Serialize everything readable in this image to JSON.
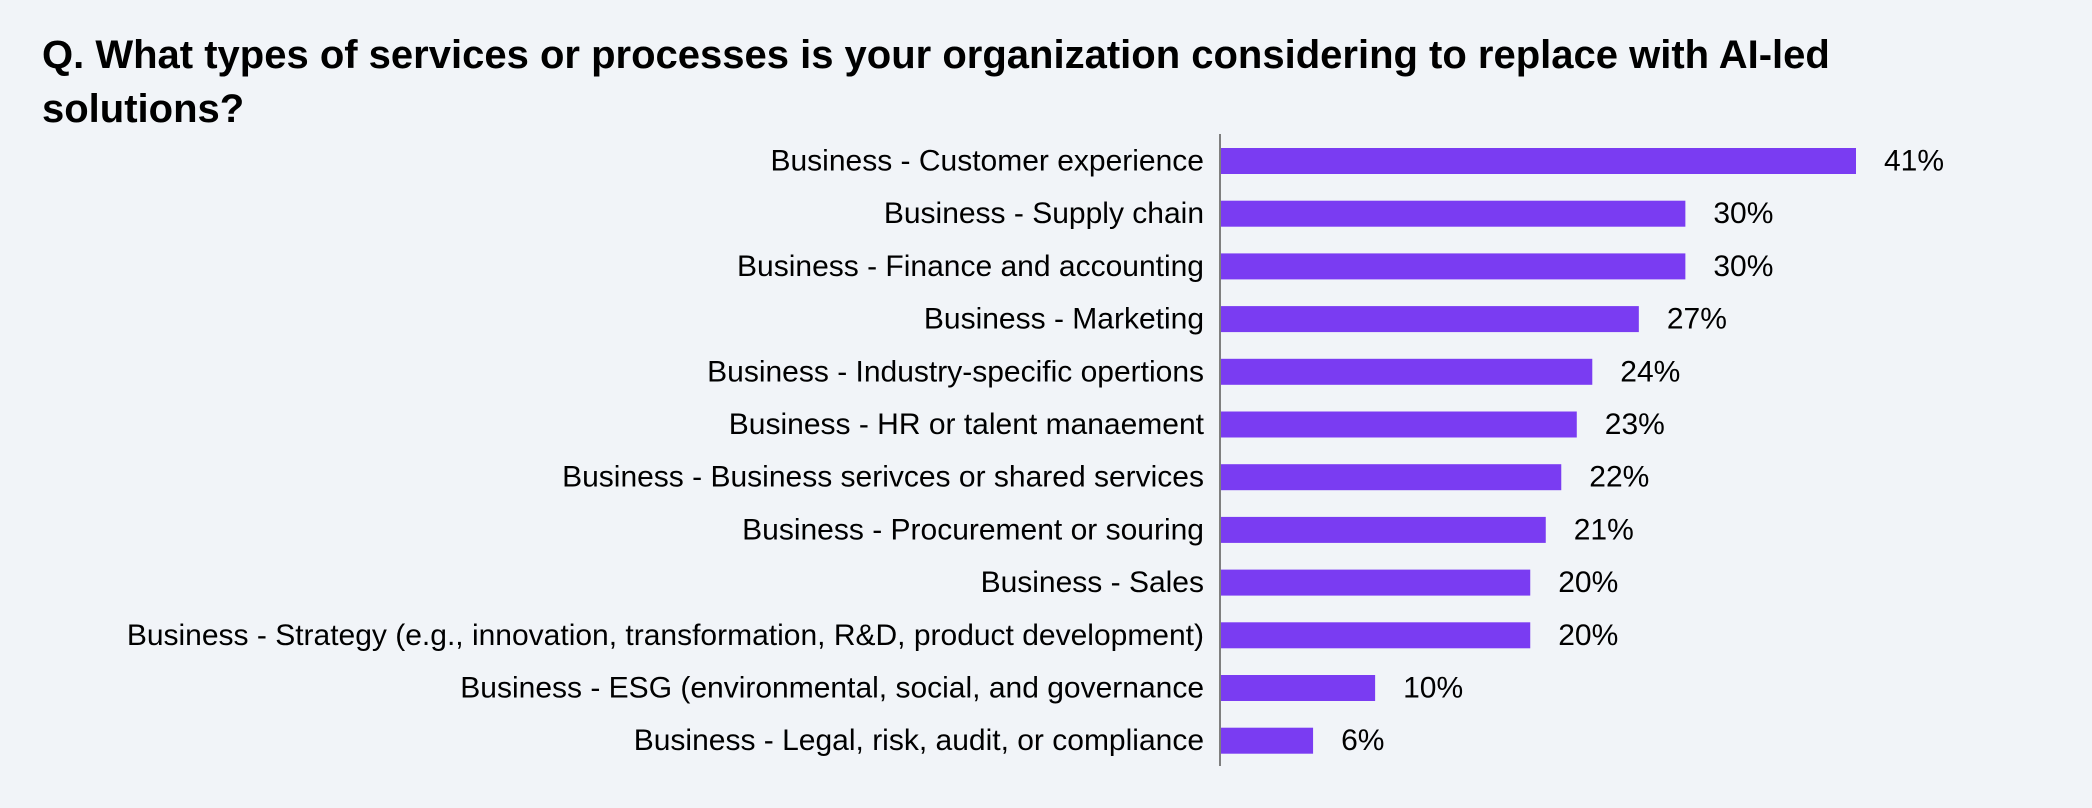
{
  "chart_data": {
    "type": "bar",
    "orientation": "horizontal",
    "title": "Q. What types of services or processes is your organization considering to replace with AI-led solutions?",
    "xlabel": "",
    "ylabel": "",
    "value_suffix": "%",
    "xlim": [
      0,
      41
    ],
    "grid": false,
    "bar_color": "#7a3cf2",
    "axis_color": "#7f7f7f",
    "categories": [
      "Business - Customer experience",
      "Business - Supply chain",
      "Business - Finance and accounting",
      "Business - Marketing",
      "Business - Industry-specific opertions",
      "Business - HR or talent manaement",
      "Business - Business serivces or shared services",
      "Business - Procurement or souring",
      "Business - Sales",
      "Business - Strategy (e.g., innovation, transformation, R&D, product development)",
      "Business - ESG (environmental, social, and governance",
      "Business - Legal, risk, audit, or compliance"
    ],
    "values": [
      41,
      30,
      30,
      27,
      24,
      23,
      22,
      21,
      20,
      20,
      10,
      6
    ],
    "value_labels": [
      "41%",
      "30%",
      "30%",
      "27%",
      "24%",
      "23%",
      "22%",
      "21%",
      "20%",
      "20%",
      "10%",
      "6%"
    ]
  }
}
